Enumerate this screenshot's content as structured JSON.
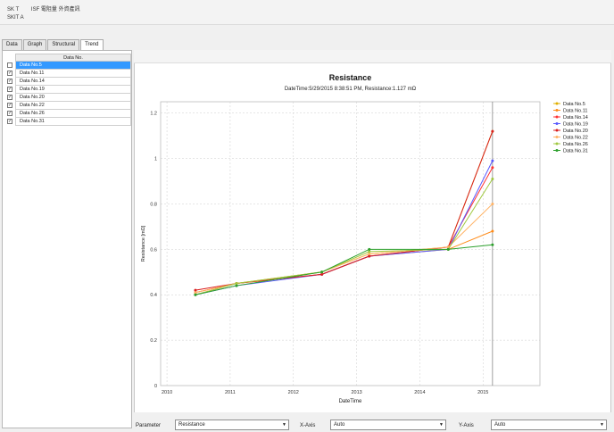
{
  "header": {
    "line1": [
      "SK T",
      "ISF 電阻量 外資產訊"
    ],
    "line2": "SKIT A"
  },
  "tabs": [
    "Data",
    "Graph",
    "Structural",
    "Trend"
  ],
  "active_tab": "Trend",
  "grid": {
    "header": "Data No.",
    "rows": [
      {
        "label": "Data No.5",
        "checked": true,
        "selected": true
      },
      {
        "label": "Data No.11",
        "checked": true,
        "selected": false
      },
      {
        "label": "Data No.14",
        "checked": true,
        "selected": false
      },
      {
        "label": "Data No.19",
        "checked": true,
        "selected": false
      },
      {
        "label": "Data No.20",
        "checked": true,
        "selected": false
      },
      {
        "label": "Data No.22",
        "checked": true,
        "selected": false
      },
      {
        "label": "Data No.26",
        "checked": true,
        "selected": false
      },
      {
        "label": "Data No.31",
        "checked": true,
        "selected": false
      }
    ]
  },
  "controls": {
    "parameter_label": "Parameter",
    "parameter_value": "Resistance",
    "xaxis_label": "X-Axis",
    "xaxis_value": "Auto",
    "yaxis_label": "Y-Axis",
    "yaxis_value": "Auto"
  },
  "chart_data": {
    "type": "line",
    "title": "Resistance",
    "subtitle": "DateTime:5/29/2015 8:38:51 PM, Resistance:1.127 mΩ",
    "xlabel": "DateTime",
    "ylabel": "Resistance [mΩ]",
    "x_ticks": [
      "2010",
      "2011",
      "2012",
      "2013",
      "2014",
      "2015"
    ],
    "x_values": [
      2010.45,
      2011.1,
      2012.45,
      2013.2,
      2014.45,
      2015.15
    ],
    "xlim": [
      2009.9,
      2015.9
    ],
    "ylim": [
      0,
      1.25
    ],
    "y_ticks": [
      0,
      0.2,
      0.4,
      0.6,
      0.8,
      1.0,
      1.2
    ],
    "cursor_x": 2015.15,
    "grid": true,
    "legend_position": "right",
    "series": [
      {
        "name": "Data No.5",
        "color": "#e0b000",
        "values": [
          0.41,
          0.45,
          0.5,
          0.58,
          0.61,
          1.12
        ]
      },
      {
        "name": "Data No.11",
        "color": "#ff8c1a",
        "values": [
          0.4,
          0.45,
          0.49,
          0.57,
          0.6,
          0.68
        ]
      },
      {
        "name": "Data No.14",
        "color": "#ff3333",
        "values": [
          0.41,
          0.45,
          0.49,
          0.57,
          0.61,
          0.96
        ]
      },
      {
        "name": "Data No.19",
        "color": "#5a5aff",
        "values": [
          0.4,
          0.44,
          0.49,
          0.57,
          0.6,
          0.99
        ]
      },
      {
        "name": "Data No.20",
        "color": "#d92020",
        "values": [
          0.42,
          0.45,
          0.49,
          0.57,
          0.61,
          1.12
        ]
      },
      {
        "name": "Data No.22",
        "color": "#ffb366",
        "values": [
          0.41,
          0.45,
          0.5,
          0.58,
          0.61,
          0.8
        ]
      },
      {
        "name": "Data No.26",
        "color": "#a0c840",
        "values": [
          0.4,
          0.45,
          0.5,
          0.59,
          0.6,
          0.91
        ]
      },
      {
        "name": "Data No.31",
        "color": "#2ca02c",
        "values": [
          0.4,
          0.44,
          0.5,
          0.6,
          0.6,
          0.62
        ]
      }
    ]
  }
}
